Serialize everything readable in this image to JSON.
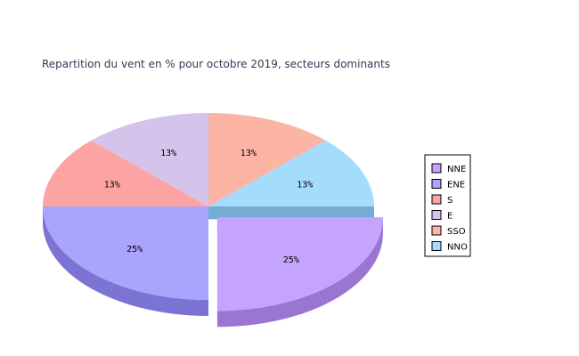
{
  "chart_data": {
    "type": "pie",
    "title": "Repartition du vent en % pour octobre 2019, secteurs dominants",
    "slices": [
      {
        "label": "NNE",
        "value": 25,
        "display": "25%",
        "color": "#c4a4fc",
        "side_color": "#9a76d2",
        "exploded": true
      },
      {
        "label": "ENE",
        "value": 25,
        "display": "25%",
        "color": "#aaa4fc",
        "side_color": "#7c74d4",
        "exploded": false
      },
      {
        "label": "S",
        "value": 12.5,
        "display": "13%",
        "color": "#fca4a4",
        "side_color": "#d47c7c",
        "exploded": false
      },
      {
        "label": "E",
        "value": 12.5,
        "display": "13%",
        "color": "#d4c4ec",
        "side_color": "#a898c4",
        "exploded": false
      },
      {
        "label": "SSO",
        "value": 12.5,
        "display": "13%",
        "color": "#fcb4a4",
        "side_color": "#d48c7c",
        "exploded": false
      },
      {
        "label": "NNO",
        "value": 12.5,
        "display": "13%",
        "color": "#a4dcfc",
        "side_color": "#74acd4",
        "exploded": false
      }
    ],
    "legend_position": "right"
  }
}
